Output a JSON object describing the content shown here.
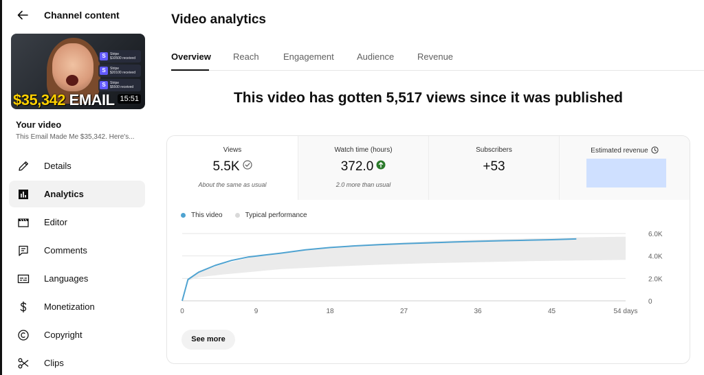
{
  "sidebar": {
    "header": "Channel content",
    "thumbnail": {
      "big_text_amount": "$35,342",
      "big_text_word": "EMAIL",
      "duration": "15:51",
      "notifications": [
        {
          "brand": "Stripe",
          "text": "$10500 received"
        },
        {
          "brand": "Stripe",
          "text": "$20100 received"
        },
        {
          "brand": "Stripe",
          "text": "$5500 received"
        }
      ]
    },
    "your_video_label": "Your video",
    "video_title": "This Email Made Me $35,342. Here's...",
    "items": [
      {
        "label": "Details",
        "icon": "pencil-icon"
      },
      {
        "label": "Analytics",
        "icon": "analytics-icon"
      },
      {
        "label": "Editor",
        "icon": "clapperboard-icon"
      },
      {
        "label": "Comments",
        "icon": "comment-icon"
      },
      {
        "label": "Languages",
        "icon": "subtitles-icon"
      },
      {
        "label": "Monetization",
        "icon": "dollar-icon"
      },
      {
        "label": "Copyright",
        "icon": "copyright-icon"
      },
      {
        "label": "Clips",
        "icon": "scissors-icon"
      }
    ],
    "active_item": "Analytics"
  },
  "main": {
    "title": "Video analytics",
    "tabs": [
      "Overview",
      "Reach",
      "Engagement",
      "Audience",
      "Revenue"
    ],
    "active_tab": "Overview",
    "headline": "This video has gotten 5,517 views since it was published",
    "metrics": [
      {
        "label": "Views",
        "value": "5.5K",
        "sub": "About the same as usual"
      },
      {
        "label": "Watch time (hours)",
        "value": "372.0",
        "sub": "2.0 more than usual"
      },
      {
        "label": "Subscribers",
        "value": "+53",
        "sub": ""
      },
      {
        "label": "Estimated revenue",
        "value": "",
        "sub": ""
      }
    ],
    "see_more": "See more"
  },
  "colors": {
    "accent_line": "#4fa3d1",
    "typical_band": "#ebebeb",
    "positive_badge": "#2b7a2b",
    "revenue_highlight": "#cfe0ff"
  },
  "chart_data": {
    "type": "line",
    "legend": [
      "This video",
      "Typical performance"
    ],
    "x_ticks": [
      "0",
      "9",
      "18",
      "27",
      "36",
      "45",
      "54 days"
    ],
    "y_ticks": [
      "0",
      "2.0K",
      "4.0K",
      "6.0K"
    ],
    "xlim": [
      0,
      54
    ],
    "ylim": [
      0,
      6000
    ],
    "series": [
      {
        "name": "This video",
        "x": [
          0,
          0.7,
          2,
          4,
          6,
          8,
          10,
          12,
          15,
          18,
          21,
          24,
          27,
          30,
          33,
          36,
          39,
          42,
          45,
          48
        ],
        "y": [
          0,
          1900,
          2550,
          3150,
          3600,
          3900,
          4080,
          4250,
          4550,
          4750,
          4900,
          5000,
          5100,
          5170,
          5240,
          5300,
          5360,
          5400,
          5450,
          5517
        ]
      }
    ],
    "typical_band": {
      "x": [
        0,
        0.7,
        2,
        5,
        9,
        12,
        18,
        24,
        30,
        36,
        42,
        48,
        54
      ],
      "upper": [
        0,
        1900,
        2550,
        3300,
        3980,
        4250,
        4800,
        5100,
        5300,
        5450,
        5550,
        5650,
        5720
      ],
      "lower": [
        0,
        1800,
        2100,
        2350,
        2620,
        2820,
        3050,
        3220,
        3350,
        3450,
        3530,
        3600,
        3650
      ]
    }
  }
}
